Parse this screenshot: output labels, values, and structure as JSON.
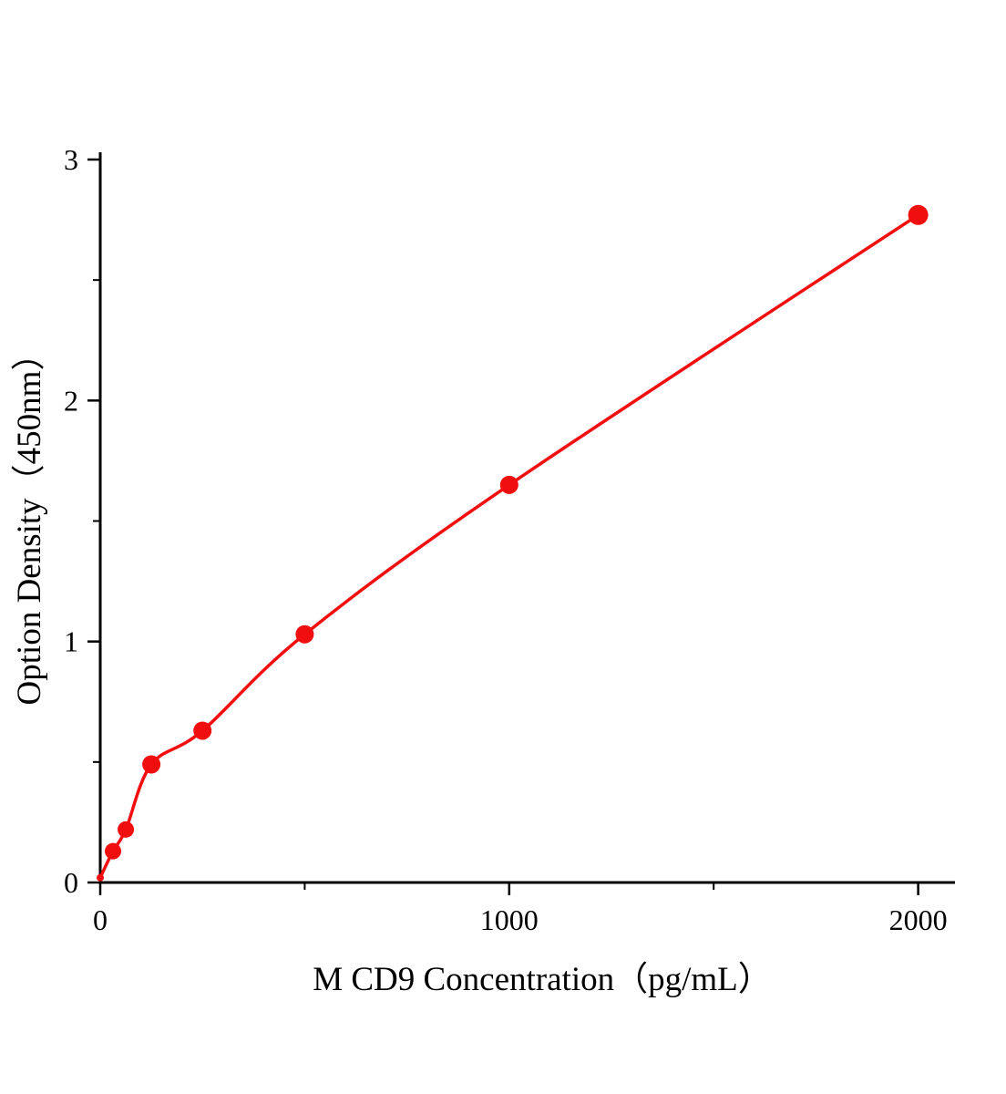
{
  "chart_data": {
    "type": "scatter",
    "title": "",
    "xlabel": "M CD9 Concentration（pg/mL）",
    "ylabel": "Option Density（450nm）",
    "x": [
      0,
      31.2,
      62.5,
      125,
      250,
      500,
      1000,
      2000
    ],
    "y": [
      0.02,
      0.13,
      0.22,
      0.49,
      0.63,
      1.03,
      1.65,
      2.77
    ],
    "marker_radii": [
      4,
      9,
      9,
      10,
      10,
      10,
      10,
      11
    ],
    "xlim": [
      0,
      2090
    ],
    "ylim": [
      0,
      3
    ],
    "x_major_ticks": [
      0,
      1000,
      2000
    ],
    "x_minor_ticks": [
      500,
      1500
    ],
    "y_major_ticks": [
      0,
      1,
      2,
      3
    ],
    "y_minor_ticks": [
      0.5,
      1.5,
      2.5
    ],
    "grid": false,
    "legend_position": "none",
    "line_color": "#f10e0e",
    "marker_color": "#f10e0e",
    "axis_color": "#000000"
  }
}
